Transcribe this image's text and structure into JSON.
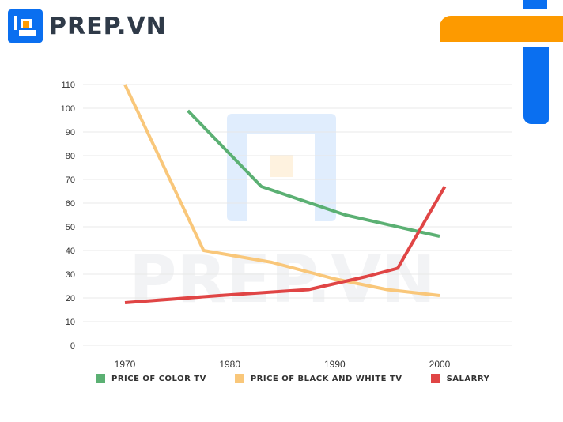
{
  "brand": {
    "name": "PREP.VN",
    "watermark": "PREP.VN"
  },
  "colors": {
    "brand_blue": "#0a6ff0",
    "brand_orange": "#fd9a00",
    "color_tv": "#5bb073",
    "bw_tv": "#f9c77a",
    "salary": "#e04545",
    "grid": "#e8e8e8"
  },
  "chart_data": {
    "type": "line",
    "title": "",
    "xlabel": "",
    "ylabel": "",
    "xlim": [
      1970,
      2000
    ],
    "ylim": [
      0,
      110
    ],
    "yticks": [
      "0",
      "10",
      "20",
      "30",
      "40",
      "50",
      "60",
      "70",
      "80",
      "90",
      "100",
      "110"
    ],
    "xticks": [
      "1970",
      "1980",
      "1990",
      "2000"
    ],
    "grid": true,
    "legend_position": "bottom",
    "series": [
      {
        "name": "PRICE OF COLOR TV",
        "color": "#5bb073",
        "points": [
          [
            1976,
            99
          ],
          [
            1983,
            67
          ],
          [
            1991,
            55
          ],
          [
            2000,
            46
          ]
        ]
      },
      {
        "name": "PRICE OF BLACK AND WHITE TV",
        "color": "#f9c77a",
        "points": [
          [
            1970,
            110
          ],
          [
            1977.5,
            40
          ],
          [
            1984,
            35
          ],
          [
            1990,
            28
          ],
          [
            1995,
            23.5
          ],
          [
            2000,
            21
          ]
        ]
      },
      {
        "name": "SALARRY",
        "color": "#e04545",
        "points": [
          [
            1970,
            18
          ],
          [
            1979,
            21
          ],
          [
            1987.5,
            23.5
          ],
          [
            1993,
            29
          ],
          [
            1996,
            32.5
          ],
          [
            2000.5,
            67
          ]
        ]
      }
    ]
  }
}
